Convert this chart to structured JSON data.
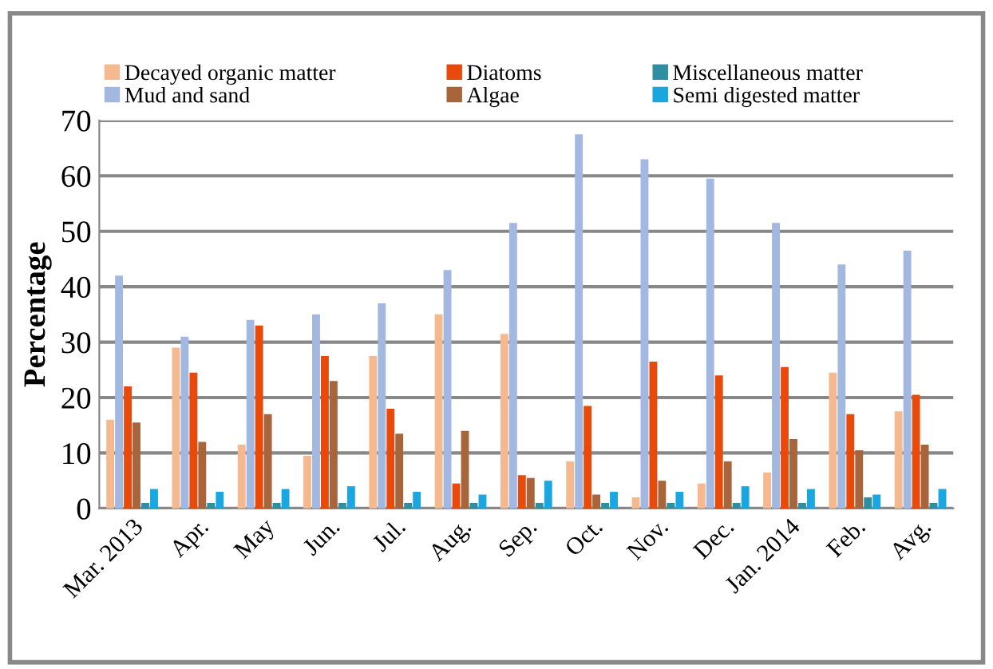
{
  "chart_data": {
    "type": "bar",
    "ylabel": "Percentage",
    "categories": [
      "Mar. 2013",
      "Apr.",
      "May",
      "Jun.",
      "Jul.",
      "Aug.",
      "Sep.",
      "Oct.",
      "Nov.",
      "Dec.",
      "Jan. 2014",
      "Feb.",
      "Avg."
    ],
    "series": [
      {
        "name": "Decayed organic matter",
        "color": "#f5b98f",
        "values": [
          16,
          29,
          11.5,
          9.5,
          27.5,
          35,
          31.5,
          8.5,
          2,
          4.5,
          6.5,
          24.5,
          17.5
        ]
      },
      {
        "name": "Mud and sand",
        "color": "#a3b8e0",
        "values": [
          42,
          31,
          34,
          35,
          37,
          43,
          51.5,
          67.5,
          63,
          59.5,
          51.5,
          44,
          46.5
        ]
      },
      {
        "name": "Diatoms",
        "color": "#e84a0c",
        "values": [
          22,
          24.5,
          33,
          27.5,
          18,
          4.5,
          6,
          18.5,
          26.5,
          24,
          25.5,
          17,
          20.5
        ]
      },
      {
        "name": "Algae",
        "color": "#a8653c",
        "values": [
          15.5,
          12,
          17,
          23,
          13.5,
          14,
          5.5,
          2.5,
          5,
          8.5,
          12.5,
          10.5,
          11.5
        ]
      },
      {
        "name": "Miscellaneous matter",
        "color": "#2e8fa0",
        "values": [
          1,
          1,
          1,
          1,
          1,
          1,
          1,
          1,
          1,
          1,
          1,
          2,
          1
        ]
      },
      {
        "name": "Semi digested matter",
        "color": "#1aa6e0",
        "values": [
          3.5,
          3,
          3.5,
          4,
          3,
          2.5,
          5,
          3,
          3,
          4,
          3.5,
          2.5,
          3.5
        ]
      }
    ],
    "ylim": [
      0,
      70
    ],
    "yticks": [
      0,
      10,
      20,
      30,
      40,
      50,
      60,
      70
    ],
    "grid": "y",
    "legend": "top"
  }
}
